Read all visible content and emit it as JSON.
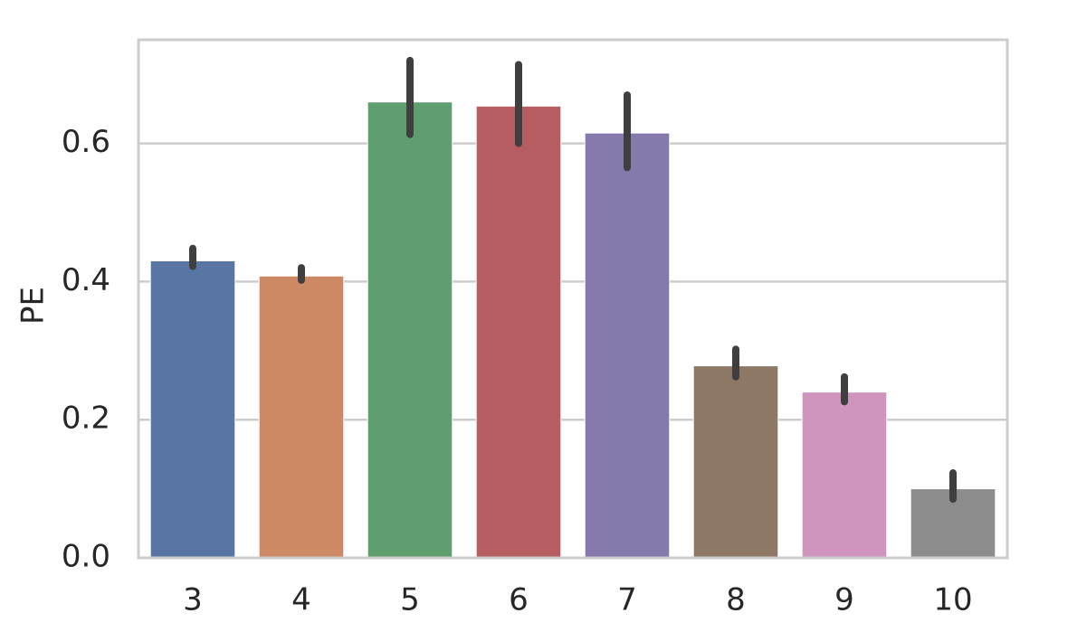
{
  "chart_data": {
    "type": "bar",
    "title": "",
    "xlabel": "",
    "ylabel": "PE",
    "categories": [
      "3",
      "4",
      "5",
      "6",
      "7",
      "8",
      "9",
      "10"
    ],
    "values": [
      0.43,
      0.408,
      0.66,
      0.654,
      0.615,
      0.278,
      0.24,
      0.1
    ],
    "error_low": [
      0.422,
      0.402,
      0.613,
      0.6,
      0.565,
      0.262,
      0.226,
      0.085
    ],
    "error_high": [
      0.448,
      0.42,
      0.72,
      0.714,
      0.67,
      0.302,
      0.262,
      0.123
    ],
    "colors": [
      "#5975a4",
      "#cc8963",
      "#5f9e6e",
      "#b55d60",
      "#857aab",
      "#8d7866",
      "#d095bf",
      "#8c8c8c"
    ],
    "ylim": [
      0,
      0.75
    ],
    "yticks": [
      0.0,
      0.2,
      0.4,
      0.6
    ],
    "ytick_labels": [
      "0.0",
      "0.2",
      "0.4",
      "0.6"
    ],
    "grid": true,
    "grid_color": "#cccccc",
    "errorbar_color": "#3f3f3f"
  }
}
